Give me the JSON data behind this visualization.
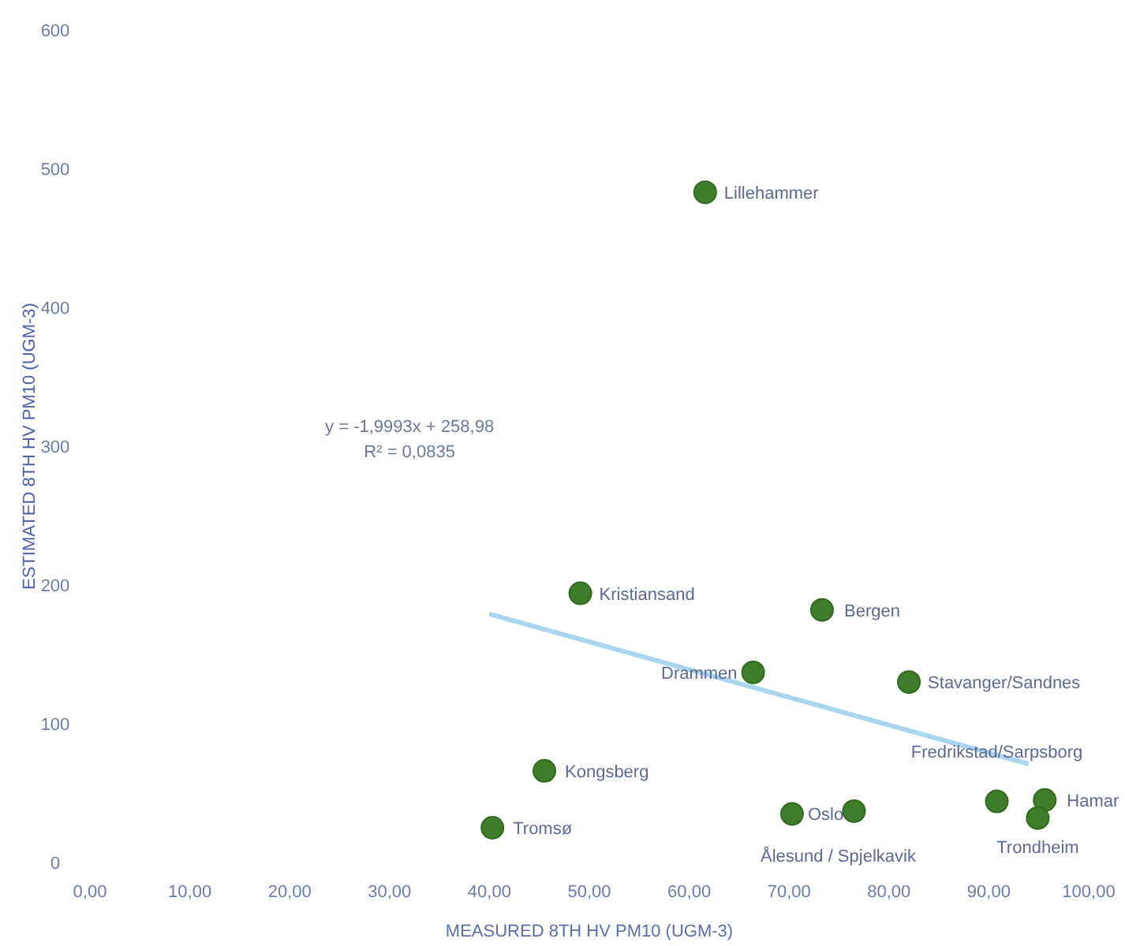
{
  "chart_data": {
    "type": "scatter",
    "xlabel": "MEASURED 8TH HV PM10 (UGM-3)",
    "ylabel": "ESTIMATED 8TH HV PM10 (UGM-3)",
    "xlim": [
      0,
      100
    ],
    "ylim": [
      0,
      600
    ],
    "xticks": [
      {
        "value": 0,
        "label": "0,00"
      },
      {
        "value": 10,
        "label": "10,00"
      },
      {
        "value": 20,
        "label": "20,00"
      },
      {
        "value": 30,
        "label": "30,00"
      },
      {
        "value": 40,
        "label": "40,00"
      },
      {
        "value": 50,
        "label": "50,00"
      },
      {
        "value": 60,
        "label": "60,00"
      },
      {
        "value": 70,
        "label": "70,00"
      },
      {
        "value": 80,
        "label": "80,00"
      },
      {
        "value": 90,
        "label": "90,00"
      },
      {
        "value": 100,
        "label": "100,00"
      }
    ],
    "yticks": [
      0,
      100,
      200,
      300,
      400,
      500,
      600
    ],
    "grid": false,
    "marker": "circle",
    "series": [
      {
        "type": "scatter",
        "color": "#3f7d2b",
        "x": [
          61.6,
          49.1,
          73.3,
          66.4,
          82.0,
          45.5,
          40.3,
          70.3,
          76.5,
          90.8,
          95.6,
          94.9
        ],
        "values": [
          483,
          194,
          182,
          137,
          130,
          66,
          25,
          35,
          37,
          44,
          45,
          32
        ]
      },
      {
        "type": "line",
        "color": "#a9d5ef",
        "line_style": "solid",
        "marker": "none",
        "x": [
          40,
          94
        ],
        "values": [
          179,
          71
        ]
      }
    ],
    "annotations": [
      {
        "text": "Lillehammer",
        "x": 61.6,
        "y": 483
      },
      {
        "text": "Kristiansand",
        "x": 49.1,
        "y": 194
      },
      {
        "text": "Bergen",
        "x": 73.3,
        "y": 182
      },
      {
        "text": "Drammen",
        "x": 66.4,
        "y": 137
      },
      {
        "text": "Stavanger/Sandnes",
        "x": 82.0,
        "y": 130
      },
      {
        "text": "Kongsberg",
        "x": 45.5,
        "y": 66
      },
      {
        "text": "Tromsø",
        "x": 40.3,
        "y": 25
      },
      {
        "text": "Oslo",
        "x": 70.3,
        "y": 35
      },
      {
        "text": "Ålesund / Spjelkavik",
        "x": 76.5,
        "y": 37
      },
      {
        "text": "Fredrikstad/Sarpsborg",
        "x": 90.8,
        "y": 44
      },
      {
        "text": "Hamar",
        "x": 95.6,
        "y": 45
      },
      {
        "text": "Trondheim",
        "x": 94.9,
        "y": 32
      },
      "y = -1,9993x + 258,98",
      "R² = 0,0835"
    ]
  }
}
